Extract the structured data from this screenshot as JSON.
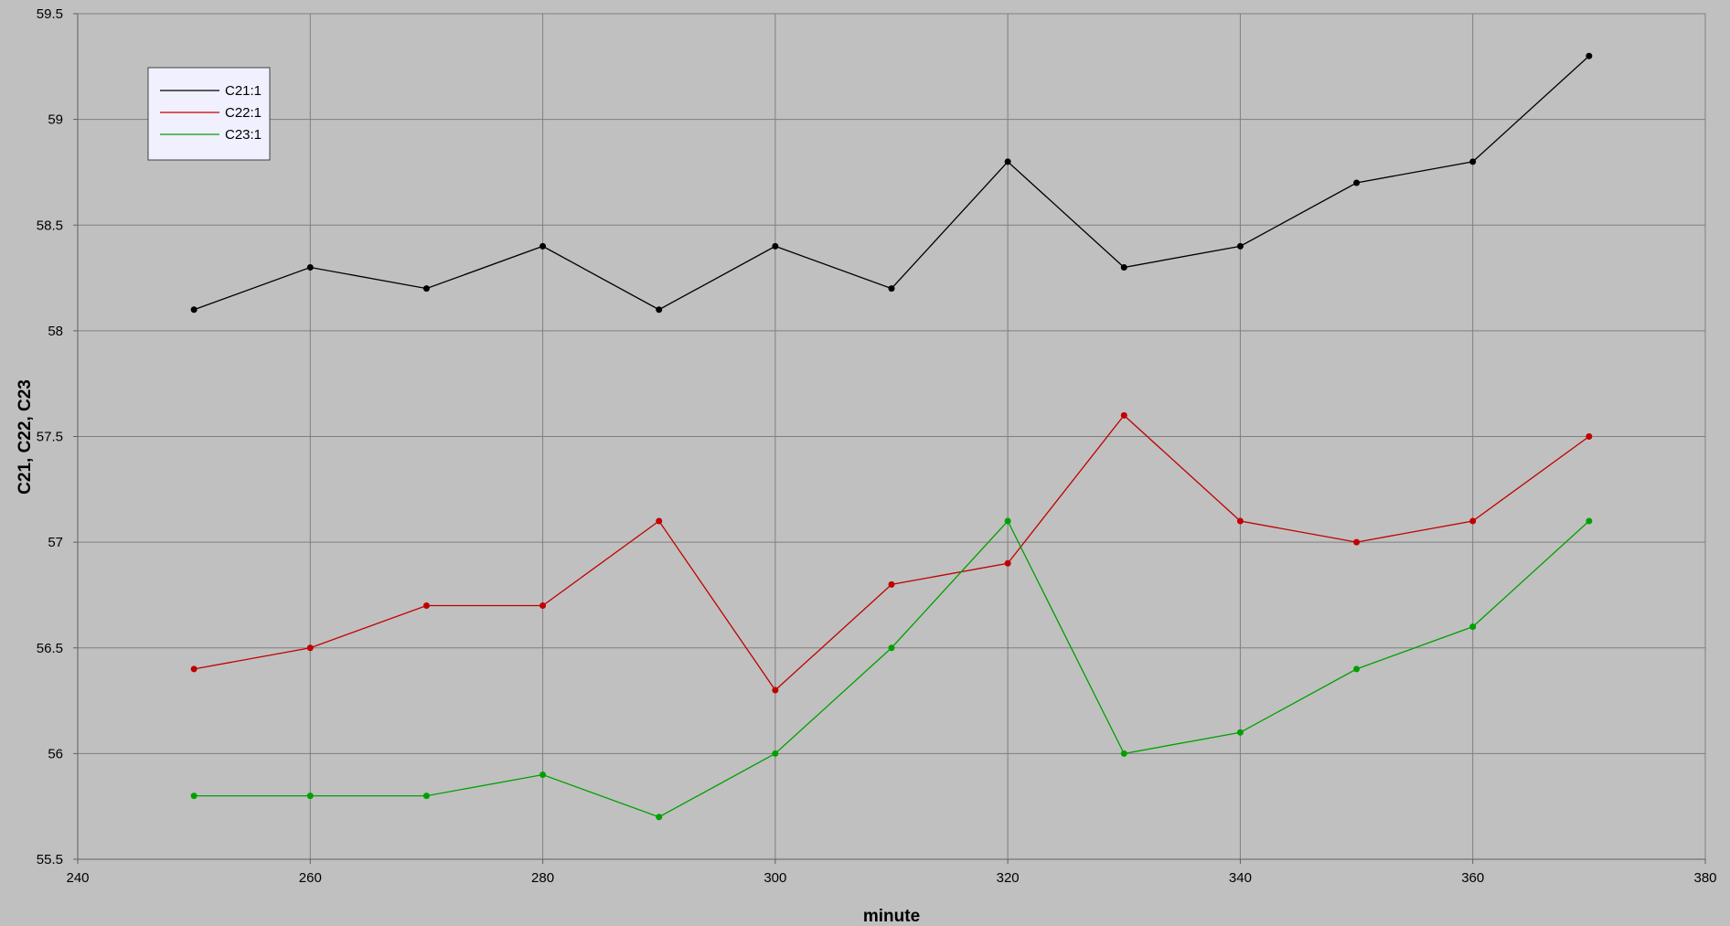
{
  "chart_data": {
    "type": "line",
    "title": "",
    "xlabel": "minute",
    "ylabel": "C21, C22, C23",
    "xlim": [
      240,
      380
    ],
    "ylim": [
      55.5,
      59.5
    ],
    "xticks": [
      240,
      260,
      280,
      300,
      320,
      340,
      360,
      380
    ],
    "yticks": [
      55.5,
      56,
      56.5,
      57,
      57.5,
      58,
      58.5,
      59,
      59.5
    ],
    "xtick_labels": [
      "240",
      "260",
      "280",
      "300",
      "320",
      "340",
      "360",
      "380"
    ],
    "ytick_labels": [
      "55.5",
      "56",
      "56.5",
      "57",
      "57.5",
      "58",
      "58.5",
      "59",
      "59.5"
    ],
    "grid": true,
    "legend_position": "top-left",
    "background_color": "#c0c0c0",
    "grid_color": "#7f7f7f",
    "legend_background": "#f0f0ff",
    "x": [
      250,
      260,
      270,
      280,
      290,
      300,
      310,
      320,
      330,
      340,
      350,
      360,
      370
    ],
    "series": [
      {
        "name": "C21:1",
        "color": "#000000",
        "values": [
          58.1,
          58.3,
          58.2,
          58.4,
          58.1,
          58.4,
          58.2,
          58.8,
          58.3,
          58.4,
          58.7,
          58.8,
          59.3
        ]
      },
      {
        "name": "C22:1",
        "color": "#c00000",
        "values": [
          56.4,
          56.5,
          56.7,
          56.7,
          57.1,
          56.3,
          56.8,
          56.9,
          57.6,
          57.1,
          57.0,
          57.1,
          57.5
        ]
      },
      {
        "name": "C23:1",
        "color": "#00a000",
        "values": [
          55.8,
          55.8,
          55.8,
          55.9,
          55.7,
          56.0,
          56.5,
          57.1,
          56.0,
          56.1,
          56.4,
          56.6,
          57.1
        ]
      }
    ]
  }
}
